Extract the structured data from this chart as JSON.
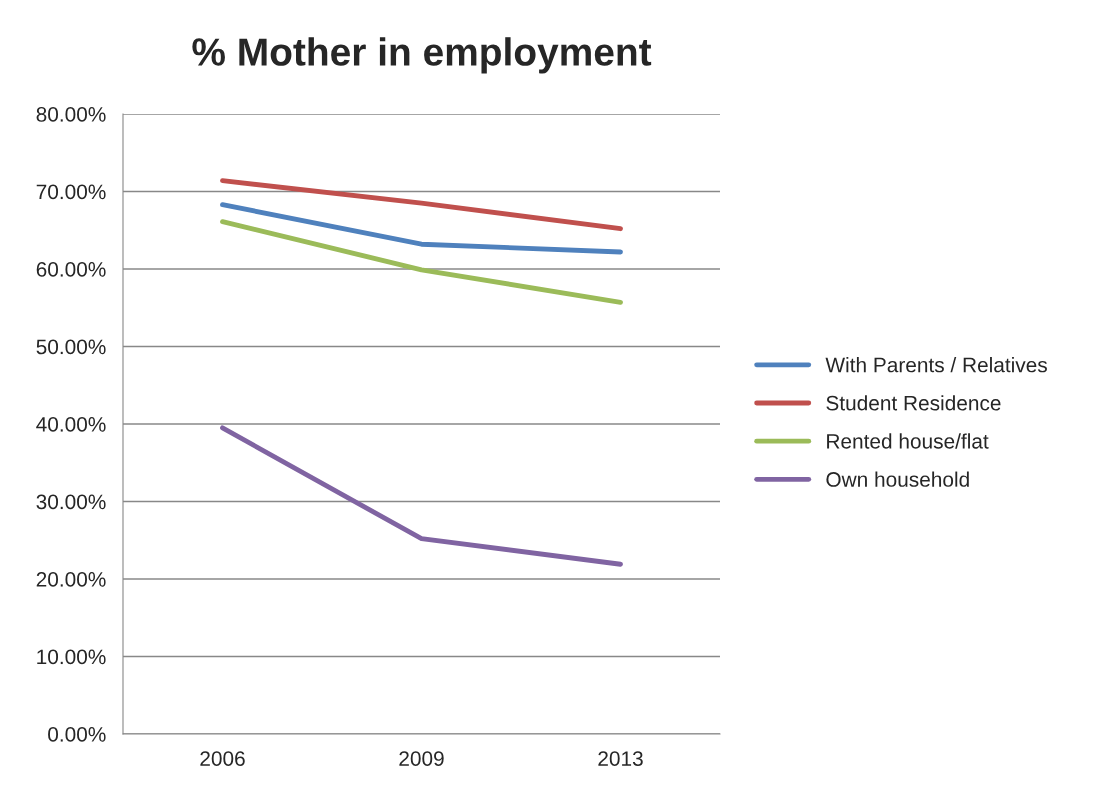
{
  "chart_data": {
    "type": "line",
    "title": "% Mother in employment",
    "categories": [
      "2006",
      "2009",
      "2013"
    ],
    "series": [
      {
        "name": "With Parents / Relatives",
        "color": "#4f81bd",
        "values": [
          68.3,
          63.2,
          62.2
        ]
      },
      {
        "name": "Student Residence",
        "color": "#c0504d",
        "values": [
          71.4,
          68.5,
          65.2
        ]
      },
      {
        "name": "Rented house/flat",
        "color": "#9bbb59",
        "values": [
          66.1,
          59.9,
          55.7
        ]
      },
      {
        "name": "Own household",
        "color": "#8064a2",
        "values": [
          39.5,
          25.2,
          21.9
        ]
      }
    ],
    "ylim": [
      0,
      80
    ],
    "yticks": [
      {
        "value": 0,
        "label": "0.00%"
      },
      {
        "value": 10,
        "label": "10.00%"
      },
      {
        "value": 20,
        "label": "20.00%"
      },
      {
        "value": 30,
        "label": "30.00%"
      },
      {
        "value": 40,
        "label": "40.00%"
      },
      {
        "value": 50,
        "label": "50.00%"
      },
      {
        "value": 60,
        "label": "60.00%"
      },
      {
        "value": 70,
        "label": "70.00%"
      },
      {
        "value": 80,
        "label": "80.00%"
      }
    ],
    "grid": "y",
    "legend": "right",
    "marker": "none",
    "line_style": "solid"
  }
}
